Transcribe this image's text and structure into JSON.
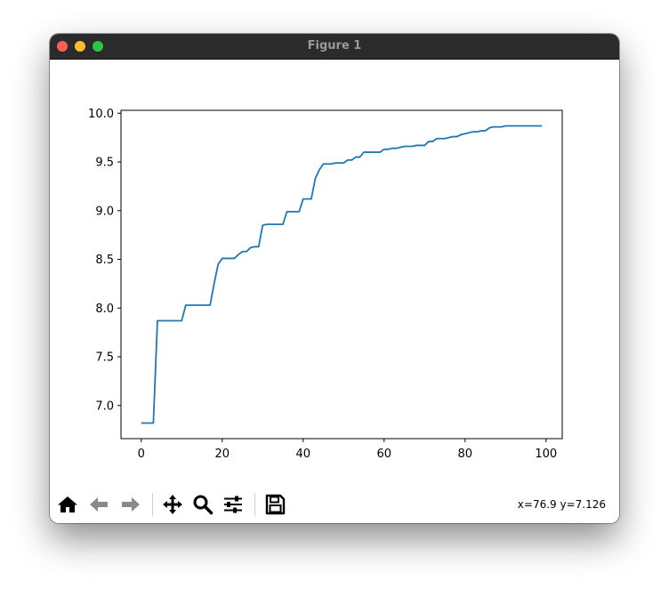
{
  "window": {
    "title": "Figure 1"
  },
  "toolbar": {
    "buttons": [
      {
        "name": "home-button",
        "icon": "home-icon",
        "enabled": true
      },
      {
        "name": "back-button",
        "icon": "arrow-left-icon",
        "enabled": false
      },
      {
        "name": "forward-button",
        "icon": "arrow-right-icon",
        "enabled": false
      },
      {
        "name": "pan-button",
        "icon": "move-icon",
        "enabled": true
      },
      {
        "name": "zoom-button",
        "icon": "magnifier-icon",
        "enabled": true
      },
      {
        "name": "configure-subplots-button",
        "icon": "sliders-icon",
        "enabled": true
      },
      {
        "name": "save-button",
        "icon": "floppy-disk-icon",
        "enabled": true
      }
    ],
    "coordinates": "x=76.9 y=7.126"
  },
  "chart_data": {
    "type": "line",
    "title": "",
    "xlabel": "",
    "ylabel": "",
    "xlim": [
      -5,
      104
    ],
    "ylim": [
      6.66,
      10.03
    ],
    "xticks": [
      0,
      20,
      40,
      60,
      80,
      100
    ],
    "xtick_labels": [
      "0",
      "20",
      "40",
      "60",
      "80",
      "100"
    ],
    "yticks": [
      7.0,
      7.5,
      8.0,
      8.5,
      9.0,
      9.5,
      10.0
    ],
    "ytick_labels": [
      "7.0",
      "7.5",
      "8.0",
      "8.5",
      "9.0",
      "9.5",
      "10.0"
    ],
    "grid": false,
    "color": "#1f77b4",
    "series": [
      {
        "x": [
          0,
          1,
          2,
          3,
          4,
          5,
          6,
          7,
          8,
          9,
          10,
          11,
          12,
          13,
          14,
          15,
          16,
          17,
          18,
          19,
          20,
          21,
          22,
          23,
          24,
          25,
          26,
          27,
          28,
          29,
          30,
          31,
          32,
          33,
          34,
          35,
          36,
          37,
          38,
          39,
          40,
          41,
          42,
          43,
          44,
          45,
          46,
          47,
          48,
          49,
          50,
          51,
          52,
          53,
          54,
          55,
          56,
          57,
          58,
          59,
          60,
          61,
          62,
          63,
          64,
          65,
          66,
          67,
          68,
          69,
          70,
          71,
          72,
          73,
          74,
          75,
          76,
          77,
          78,
          79,
          80,
          81,
          82,
          83,
          84,
          85,
          86,
          87,
          88,
          89,
          90,
          91,
          92,
          93,
          94,
          95,
          96,
          97,
          98,
          99
        ],
        "y": [
          6.82,
          6.82,
          6.82,
          6.82,
          7.87,
          7.87,
          7.87,
          7.87,
          7.87,
          7.87,
          7.87,
          8.03,
          8.03,
          8.03,
          8.03,
          8.03,
          8.03,
          8.03,
          8.25,
          8.45,
          8.51,
          8.51,
          8.51,
          8.51,
          8.55,
          8.58,
          8.58,
          8.62,
          8.63,
          8.63,
          8.85,
          8.86,
          8.86,
          8.86,
          8.86,
          8.86,
          8.99,
          8.99,
          8.99,
          8.99,
          9.12,
          9.12,
          9.12,
          9.33,
          9.42,
          9.48,
          9.48,
          9.48,
          9.49,
          9.49,
          9.49,
          9.52,
          9.52,
          9.55,
          9.55,
          9.6,
          9.6,
          9.6,
          9.6,
          9.6,
          9.63,
          9.63,
          9.64,
          9.64,
          9.65,
          9.66,
          9.66,
          9.66,
          9.67,
          9.67,
          9.67,
          9.71,
          9.71,
          9.74,
          9.74,
          9.74,
          9.75,
          9.76,
          9.76,
          9.78,
          9.79,
          9.8,
          9.81,
          9.81,
          9.82,
          9.82,
          9.85,
          9.86,
          9.86,
          9.86,
          9.87,
          9.87,
          9.87,
          9.87,
          9.87,
          9.87,
          9.87,
          9.87,
          9.87,
          9.87
        ]
      }
    ]
  }
}
